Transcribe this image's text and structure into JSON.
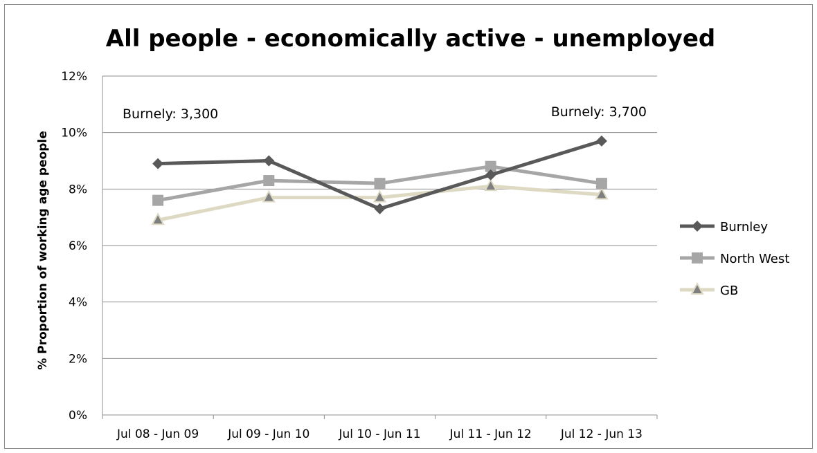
{
  "chart_data": {
    "type": "line",
    "title": "All people - economically active - unemployed",
    "ylabel": "% Proportion of working age people",
    "xlabel": "",
    "categories": [
      "Jul 08 - Jun 09",
      "Jul 09 - Jun 10",
      "Jul 10 - Jun 11",
      "Jul 11 - Jun 12",
      "Jul 12 - Jun 13"
    ],
    "ylim": [
      0,
      12
    ],
    "yticks": [
      0,
      2,
      4,
      6,
      8,
      10,
      12
    ],
    "ytick_labels": [
      "0%",
      "2%",
      "4%",
      "6%",
      "8%",
      "10%",
      "12%"
    ],
    "grid": true,
    "legend_position": "right",
    "series": [
      {
        "name": "Burnley",
        "values": [
          8.9,
          9.0,
          7.3,
          8.5,
          9.7
        ],
        "color": "#595959",
        "marker": "diamond"
      },
      {
        "name": "North West",
        "values": [
          7.6,
          8.3,
          8.2,
          8.8,
          8.2
        ],
        "color": "#a6a6a6",
        "marker": "square"
      },
      {
        "name": "GB",
        "values": [
          6.9,
          7.7,
          7.7,
          8.1,
          7.8
        ],
        "color": "#ddd9c3",
        "marker": "triangle"
      }
    ],
    "annotations": [
      {
        "text": "Burnely: 3,300",
        "position": "top-left"
      },
      {
        "text": "Burnely: 3,700",
        "position": "top-right"
      }
    ]
  }
}
